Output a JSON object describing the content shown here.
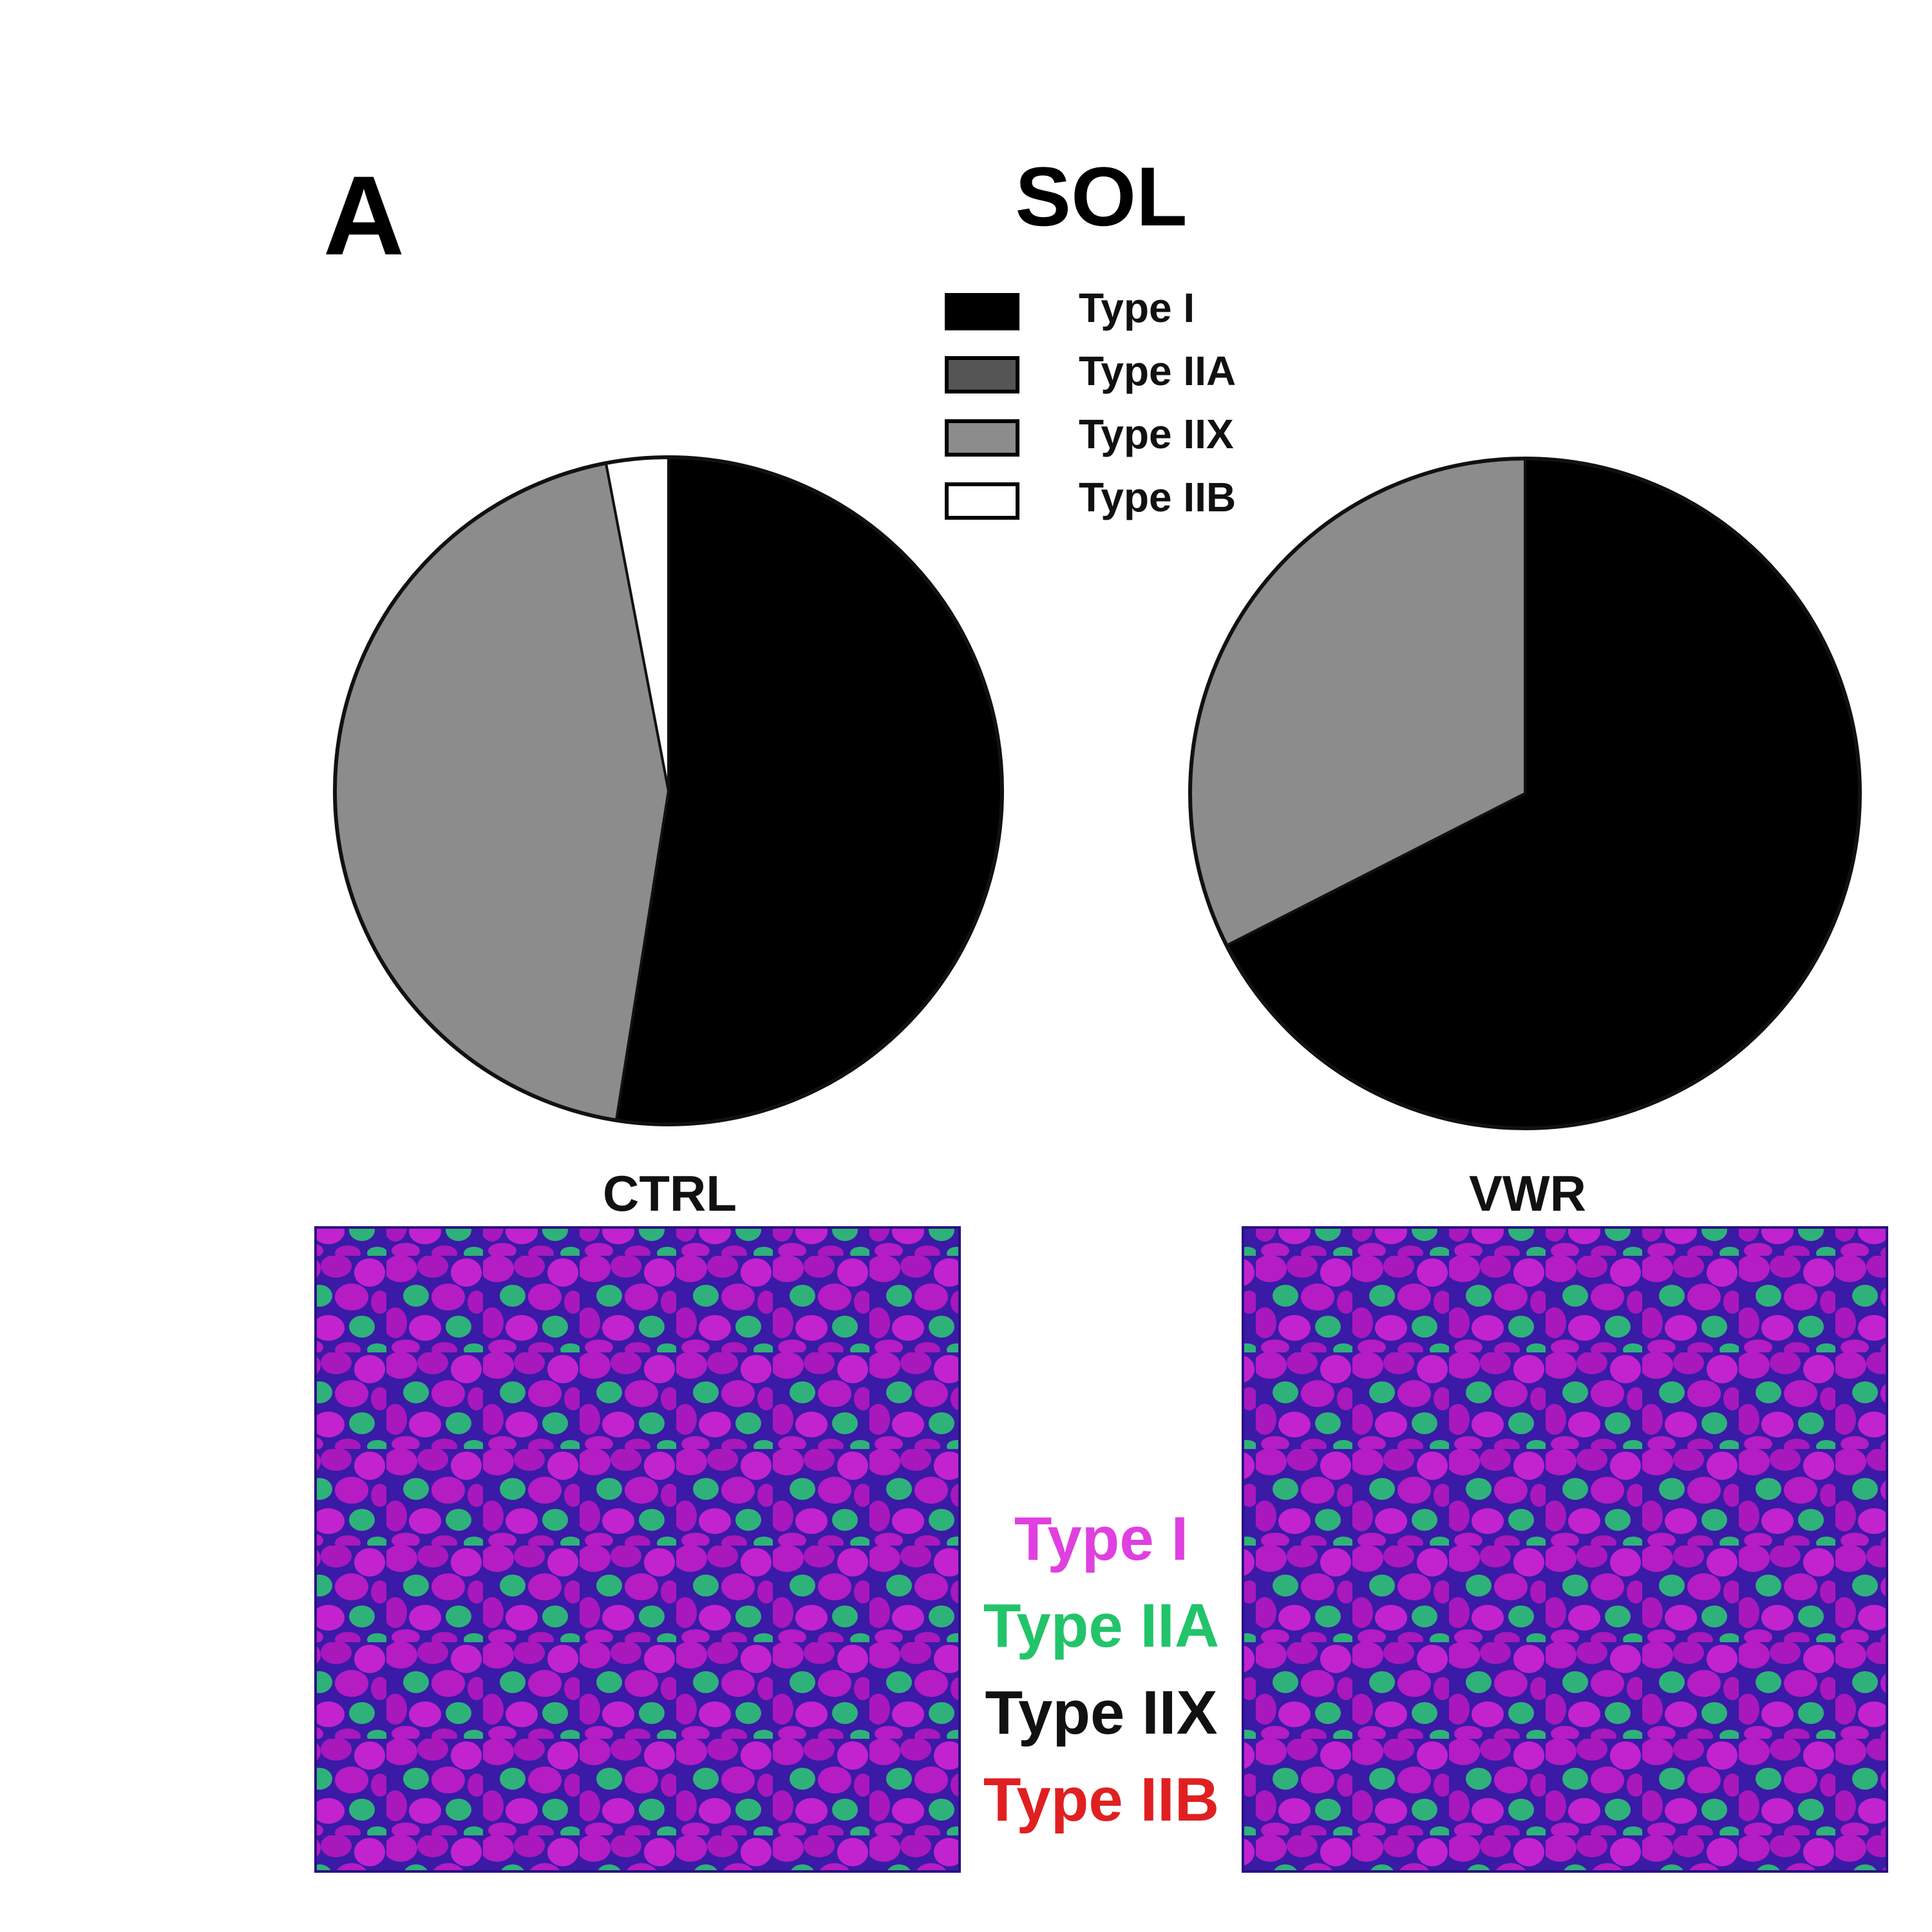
{
  "panel_letter": "A",
  "title": "SOL",
  "legend": [
    {
      "label": "Type I",
      "color": "#000000"
    },
    {
      "label": "Type IIA",
      "color": "#555555"
    },
    {
      "label": "Type IIX",
      "color": "#8c8c8c"
    },
    {
      "label": "Type IIB",
      "color": "#ffffff"
    }
  ],
  "chart_data": [
    {
      "type": "pie",
      "label": "CTRL",
      "slices": [
        {
          "name": "Type I",
          "value": 52.5
        },
        {
          "name": "Type IIA",
          "value": 0
        },
        {
          "name": "Type IIX",
          "value": 44.5
        },
        {
          "name": "Type IIB",
          "value": 3.0
        }
      ]
    },
    {
      "type": "pie",
      "label": "VWR",
      "slices": [
        {
          "name": "Type I",
          "value": 67.5
        },
        {
          "name": "Type IIA",
          "value": 0
        },
        {
          "name": "Type IIX",
          "value": 32.5
        },
        {
          "name": "Type IIB",
          "value": 0
        }
      ]
    }
  ],
  "micrographs": [
    {
      "label": "CTRL"
    },
    {
      "label": "VWR"
    }
  ],
  "stain_key": [
    {
      "label": "Type I",
      "color": "#e040e0"
    },
    {
      "label": "Type IIA",
      "color": "#22c46a"
    },
    {
      "label": "Type IIX",
      "color": "#111111"
    },
    {
      "label": "Type IIB",
      "color": "#e02020"
    }
  ]
}
